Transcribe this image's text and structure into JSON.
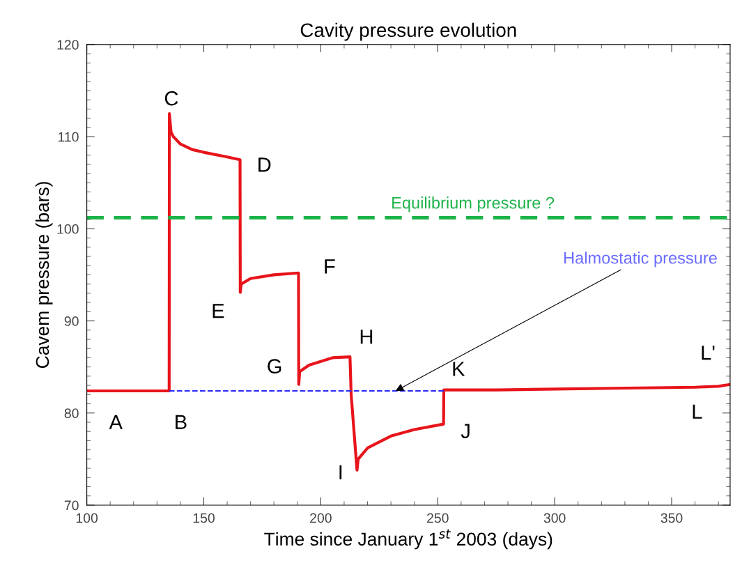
{
  "chart_data": {
    "type": "line",
    "title": "Cavity pressure evolution",
    "xlabel": "Time since January 1$^{st}$ 2003 (days)",
    "ylabel": "Cavem pressure (bars)",
    "xlim": [
      100,
      375
    ],
    "xticks": [
      100,
      150,
      200,
      250,
      300,
      350
    ],
    "ylim": [
      70,
      120
    ],
    "yticks": [
      70,
      80,
      90,
      100,
      110,
      120
    ],
    "grid": false,
    "legend": false,
    "line_style": "solid",
    "marker": "none",
    "series": [
      {
        "color": "#e8141b",
        "x": [
          100,
          135.2,
          135.3,
          136,
          137,
          140,
          145,
          150,
          160,
          165.5,
          165.6,
          166,
          170,
          180,
          190.5,
          190.6,
          191,
          195,
          200,
          205,
          212.5,
          213,
          215.5,
          216,
          220,
          230,
          240,
          252.5,
          252.6,
          275,
          300,
          330,
          360,
          370,
          375
        ],
        "values": [
          82.4,
          82.4,
          112.5,
          110.5,
          110,
          109.2,
          108.6,
          108.3,
          107.8,
          107.5,
          93.1,
          94,
          94.6,
          95,
          95.2,
          83.1,
          84.5,
          85.2,
          85.6,
          86,
          86.1,
          82,
          73.8,
          75,
          76.2,
          77.5,
          78.2,
          78.8,
          82.5,
          82.5,
          82.6,
          82.7,
          82.8,
          82.9,
          83.1
        ]
      },
      {
        "color": "#2a2aff",
        "line_style": "dashed",
        "x": [
          135.2,
          252.6
        ],
        "values": [
          82.4,
          82.4
        ]
      }
    ],
    "ref_lines": [
      {
        "axis": "y",
        "value": 101.2,
        "label": "Equilibrium pressure ?",
        "color": "#1db34a",
        "line_style": "dashed"
      }
    ],
    "annotations": [
      {
        "text": "Halmostatic pressure",
        "x": 232,
        "y": 82.4
      },
      {
        "text": "A",
        "x": 100,
        "y": 82.4
      },
      {
        "text": "B",
        "x": 135.2,
        "y": 82.4
      },
      {
        "text": "C",
        "x": 135.3,
        "y": 112.5
      },
      {
        "text": "D",
        "x": 165.5,
        "y": 107.5
      },
      {
        "text": "E",
        "x": 165.6,
        "y": 93.1
      },
      {
        "text": "F",
        "x": 190.5,
        "y": 95.2
      },
      {
        "text": "G",
        "x": 190.6,
        "y": 83.1
      },
      {
        "text": "H",
        "x": 212.5,
        "y": 86.1
      },
      {
        "text": "I",
        "x": 215.5,
        "y": 73.8
      },
      {
        "text": "J",
        "x": 252.5,
        "y": 78.8
      },
      {
        "text": "K",
        "x": 252.6,
        "y": 82.5
      },
      {
        "text": "L",
        "x": 360,
        "y": 82.8
      },
      {
        "text": "L'",
        "x": 375,
        "y": 83.1
      }
    ]
  }
}
